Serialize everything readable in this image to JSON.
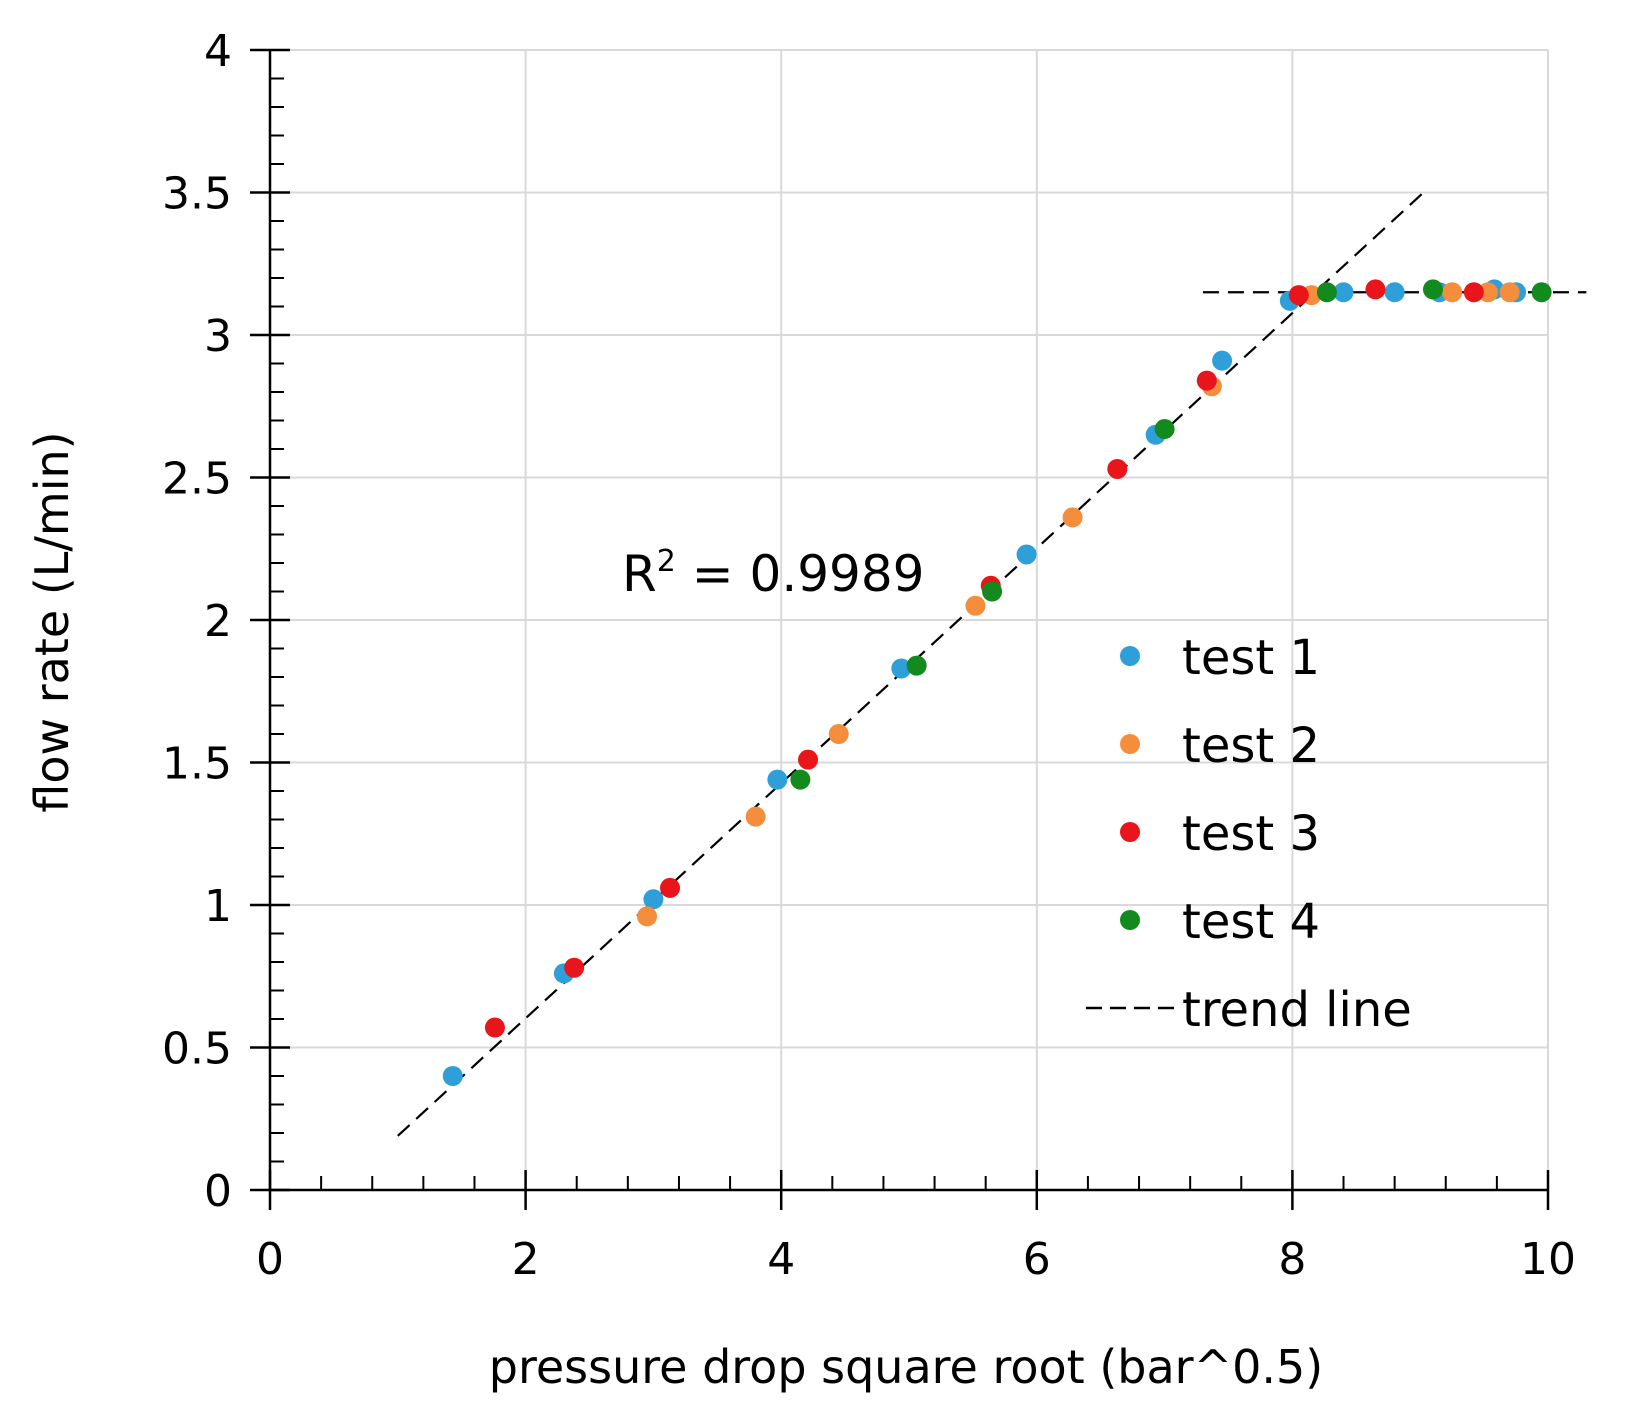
{
  "chart_data": {
    "type": "scatter",
    "title": "",
    "xlabel": "pressure drop square root (bar^0.5)",
    "ylabel": "flow rate (L/min)",
    "xlim": [
      0,
      10
    ],
    "ylim": [
      0,
      4
    ],
    "x_ticks": [
      0,
      2,
      4,
      6,
      8,
      10
    ],
    "x_tick_labels": [
      "0",
      "2",
      "4",
      "6",
      "8",
      "10"
    ],
    "y_ticks": [
      0,
      0.5,
      1,
      1.5,
      2,
      2.5,
      3,
      3.5,
      4
    ],
    "y_tick_labels": [
      "0",
      "0.5",
      "1",
      "1.5",
      "2",
      "2.5",
      "3",
      "3.5",
      "4"
    ],
    "grid": true,
    "legend_position": "right-middle",
    "annotation": {
      "prefix": "R",
      "sup": "2",
      "suffix": " = 0.9989"
    },
    "series": [
      {
        "name": "test 1",
        "color": "#2E9FD8",
        "points": [
          [
            1.43,
            0.4
          ],
          [
            2.3,
            0.76
          ],
          [
            3.0,
            1.02
          ],
          [
            3.97,
            1.44
          ],
          [
            4.94,
            1.83
          ],
          [
            5.92,
            2.23
          ],
          [
            6.93,
            2.65
          ],
          [
            7.45,
            2.91
          ],
          [
            7.98,
            3.12
          ],
          [
            8.4,
            3.15
          ],
          [
            8.8,
            3.15
          ],
          [
            9.15,
            3.15
          ],
          [
            9.58,
            3.16
          ],
          [
            9.75,
            3.15
          ]
        ]
      },
      {
        "name": "test 2",
        "color": "#F58E3C",
        "points": [
          [
            2.95,
            0.96
          ],
          [
            3.8,
            1.31
          ],
          [
            4.45,
            1.6
          ],
          [
            5.52,
            2.05
          ],
          [
            6.28,
            2.36
          ],
          [
            7.37,
            2.82
          ],
          [
            8.15,
            3.14
          ],
          [
            9.25,
            3.15
          ],
          [
            9.53,
            3.15
          ],
          [
            9.7,
            3.15
          ]
        ]
      },
      {
        "name": "test 3",
        "color": "#E8151B",
        "points": [
          [
            1.76,
            0.57
          ],
          [
            2.38,
            0.78
          ],
          [
            3.13,
            1.06
          ],
          [
            4.21,
            1.51
          ],
          [
            5.64,
            2.12
          ],
          [
            6.63,
            2.53
          ],
          [
            7.33,
            2.84
          ],
          [
            8.05,
            3.14
          ],
          [
            8.65,
            3.16
          ],
          [
            9.42,
            3.15
          ]
        ]
      },
      {
        "name": "test 4",
        "color": "#138A1E",
        "points": [
          [
            4.15,
            1.44
          ],
          [
            5.06,
            1.84
          ],
          [
            5.65,
            2.1
          ],
          [
            7.0,
            2.67
          ],
          [
            8.27,
            3.15
          ],
          [
            9.1,
            3.16
          ],
          [
            9.95,
            3.15
          ]
        ]
      }
    ],
    "trend_lines": [
      {
        "name": "trend line",
        "color": "#000000",
        "from": [
          1.0,
          0.19
        ],
        "to": [
          9.05,
          3.51
        ]
      },
      {
        "color": "#000000",
        "from": [
          7.3,
          3.15
        ],
        "to": [
          10.3,
          3.15
        ]
      }
    ]
  }
}
